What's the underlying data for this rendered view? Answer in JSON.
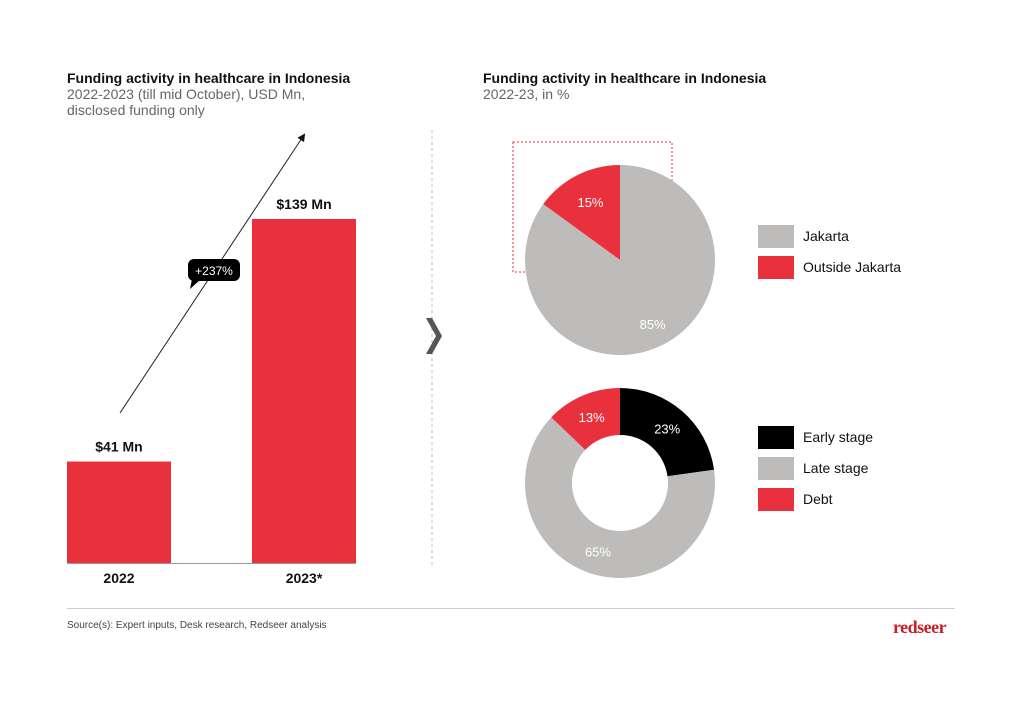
{
  "chart_data": [
    {
      "type": "bar",
      "title": "Funding activity in healthcare in Indonesia",
      "subtitle": "2022-2023 (till mid October), USD Mn, disclosed funding only",
      "categories": [
        "2022",
        "2023*"
      ],
      "values": [
        41,
        139
      ],
      "data_labels": [
        "$41 Mn",
        "$139 Mn"
      ],
      "annotation": "+237%",
      "color": "#e8313d",
      "ylim": [
        0,
        150
      ]
    },
    {
      "type": "pie",
      "title": "Funding activity in healthcare in Indonesia",
      "subtitle": "2022-23, in %",
      "slices": [
        {
          "label": "Outside Jakarta",
          "value": 15,
          "text": "15%",
          "color": "#e8313d"
        },
        {
          "label": "Jakarta",
          "value": 85,
          "text": "85%",
          "color": "#bdbcba"
        }
      ],
      "legend": [
        {
          "label": "Jakarta",
          "color": "#bdbcba"
        },
        {
          "label": "Outside Jakarta",
          "color": "#e8313d"
        }
      ],
      "legend_position": "right"
    },
    {
      "type": "pie",
      "donut": true,
      "slices": [
        {
          "label": "Early stage",
          "value": 23,
          "text": "23%",
          "color": "#000000"
        },
        {
          "label": "Late stage",
          "value": 65,
          "text": "65%",
          "color": "#bdbcba"
        },
        {
          "label": "Debt",
          "value": 13,
          "text": "13%",
          "color": "#e8313d"
        }
      ],
      "legend": [
        {
          "label": "Early stage",
          "color": "#000000"
        },
        {
          "label": "Late stage",
          "color": "#bdbcba"
        },
        {
          "label": "Debt",
          "color": "#e8313d"
        }
      ],
      "legend_position": "right"
    }
  ],
  "left_title": {
    "main": "Funding activity in healthcare in Indonesia",
    "sub1": "2022-2023 (till mid October), USD Mn,",
    "sub2": "disclosed funding only"
  },
  "right_title": {
    "main": "Funding activity in healthcare in Indonesia",
    "sub1": "2022-23, in %"
  },
  "footer": {
    "source": "Source(s): Expert inputs, Desk research, Redseer analysis",
    "logo": "redseer"
  }
}
